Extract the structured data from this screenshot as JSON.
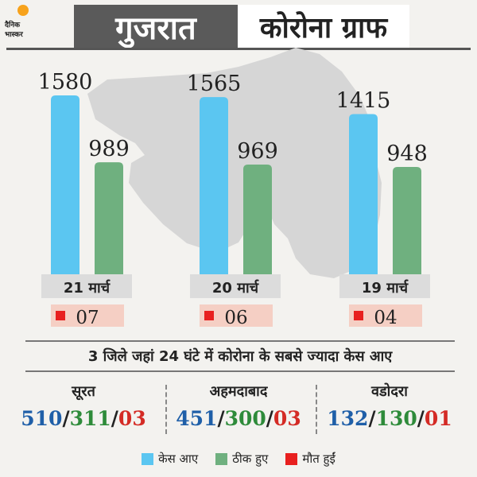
{
  "header": {
    "logo_line1": "दैनिक",
    "logo_line2": "भास्कर",
    "state": "गुजरात",
    "title": "कोरोना ग्राफ"
  },
  "colors": {
    "cases": "#5bc6f1",
    "recovered": "#6fb07f",
    "deaths": "#e8201f",
    "label_bg": "#dcdcdc",
    "death_bg": "#f5cfc4",
    "map": "#d6d6d6"
  },
  "chart_data": {
    "type": "bar",
    "categories": [
      "21 मार्च",
      "20 मार्च",
      "19 मार्च"
    ],
    "series": [
      {
        "name": "केस आए",
        "values": [
          1580,
          1565,
          1415
        ]
      },
      {
        "name": "ठीक हुए",
        "values": [
          989,
          969,
          948
        ]
      }
    ],
    "deaths": [
      "07",
      "06",
      "04"
    ],
    "ylim": [
      0,
      1600
    ]
  },
  "stats": {
    "title": "3 जिले जहां 24 घंटे में कोरोना के सबसे ज्यादा केस आए",
    "cities": [
      {
        "name": "सूरत",
        "cases": "510",
        "recovered": "311",
        "deaths": "03"
      },
      {
        "name": "अहमदाबाद",
        "cases": "451",
        "recovered": "300",
        "deaths": "03"
      },
      {
        "name": "वडोदरा",
        "cases": "132",
        "recovered": "130",
        "deaths": "01"
      }
    ]
  },
  "legend": {
    "cases": "केस आए",
    "recovered": "ठीक हुए",
    "deaths": "मौत हुईं"
  }
}
